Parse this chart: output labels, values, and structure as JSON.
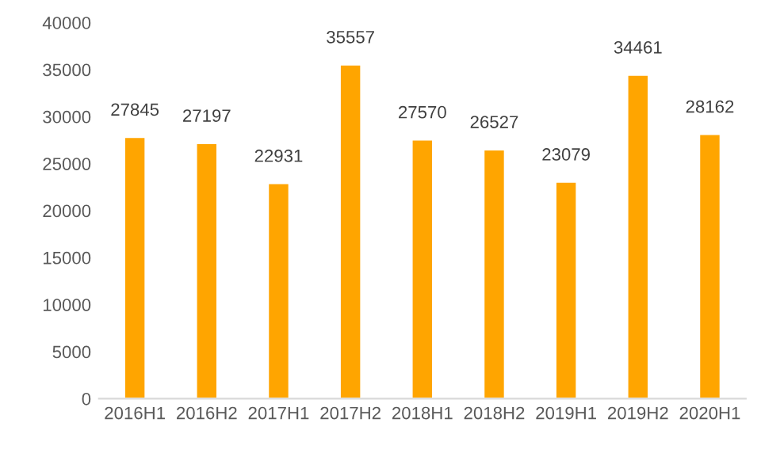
{
  "chart_data": {
    "type": "bar",
    "categories": [
      "2016H1",
      "2016H2",
      "2017H1",
      "2017H2",
      "2018H1",
      "2018H2",
      "2019H1",
      "2019H2",
      "2020H1"
    ],
    "values": [
      27845,
      27197,
      22931,
      35557,
      27570,
      26527,
      23079,
      34461,
      28162
    ],
    "color": "#ffa500",
    "ylim": [
      0,
      40000
    ],
    "yticks": [
      0,
      5000,
      10000,
      15000,
      20000,
      25000,
      30000,
      35000,
      40000
    ],
    "grid": false,
    "data_labels": true
  }
}
